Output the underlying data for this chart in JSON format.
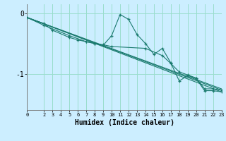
{
  "x_ticks": [
    0,
    2,
    3,
    4,
    5,
    6,
    7,
    8,
    9,
    10,
    11,
    12,
    13,
    14,
    15,
    16,
    17,
    18,
    19,
    20,
    21,
    22,
    23
  ],
  "xlabel": "Humidex (Indice chaleur)",
  "ylim": [
    -1.6,
    0.15
  ],
  "xlim": [
    0,
    23
  ],
  "yticks": [
    0,
    -1
  ],
  "ytick_labels": [
    "0",
    "-1"
  ],
  "background_color": "#cceeff",
  "grid_color": "#99ddcc",
  "line_color": "#1a7a6e",
  "line_jagged": {
    "x": [
      0,
      2,
      3,
      5,
      6,
      7,
      8,
      9,
      10,
      11,
      12,
      13,
      14,
      15,
      16,
      17,
      18,
      19,
      20,
      21,
      22,
      23
    ],
    "y": [
      -0.07,
      -0.17,
      -0.28,
      -0.4,
      -0.44,
      -0.47,
      -0.5,
      -0.53,
      -0.37,
      -0.02,
      -0.1,
      -0.35,
      -0.5,
      -0.68,
      -0.58,
      -0.82,
      -1.12,
      -1.03,
      -1.08,
      -1.28,
      -1.28,
      -1.3
    ]
  },
  "line_smooth": {
    "x": [
      0,
      2,
      5,
      7,
      8,
      9,
      10,
      14,
      16,
      17,
      18,
      19,
      20,
      21,
      22,
      23
    ],
    "y": [
      -0.07,
      -0.2,
      -0.37,
      -0.47,
      -0.5,
      -0.52,
      -0.55,
      -0.58,
      -0.7,
      -0.83,
      -0.97,
      -1.02,
      -1.07,
      -1.25,
      -1.25,
      -1.27
    ]
  },
  "reg_lines": [
    {
      "x": [
        0,
        23
      ],
      "y": [
        -0.07,
        -1.3
      ]
    },
    {
      "x": [
        0,
        23
      ],
      "y": [
        -0.07,
        -1.25
      ]
    },
    {
      "x": [
        0,
        23
      ],
      "y": [
        -0.07,
        -1.27
      ]
    }
  ]
}
